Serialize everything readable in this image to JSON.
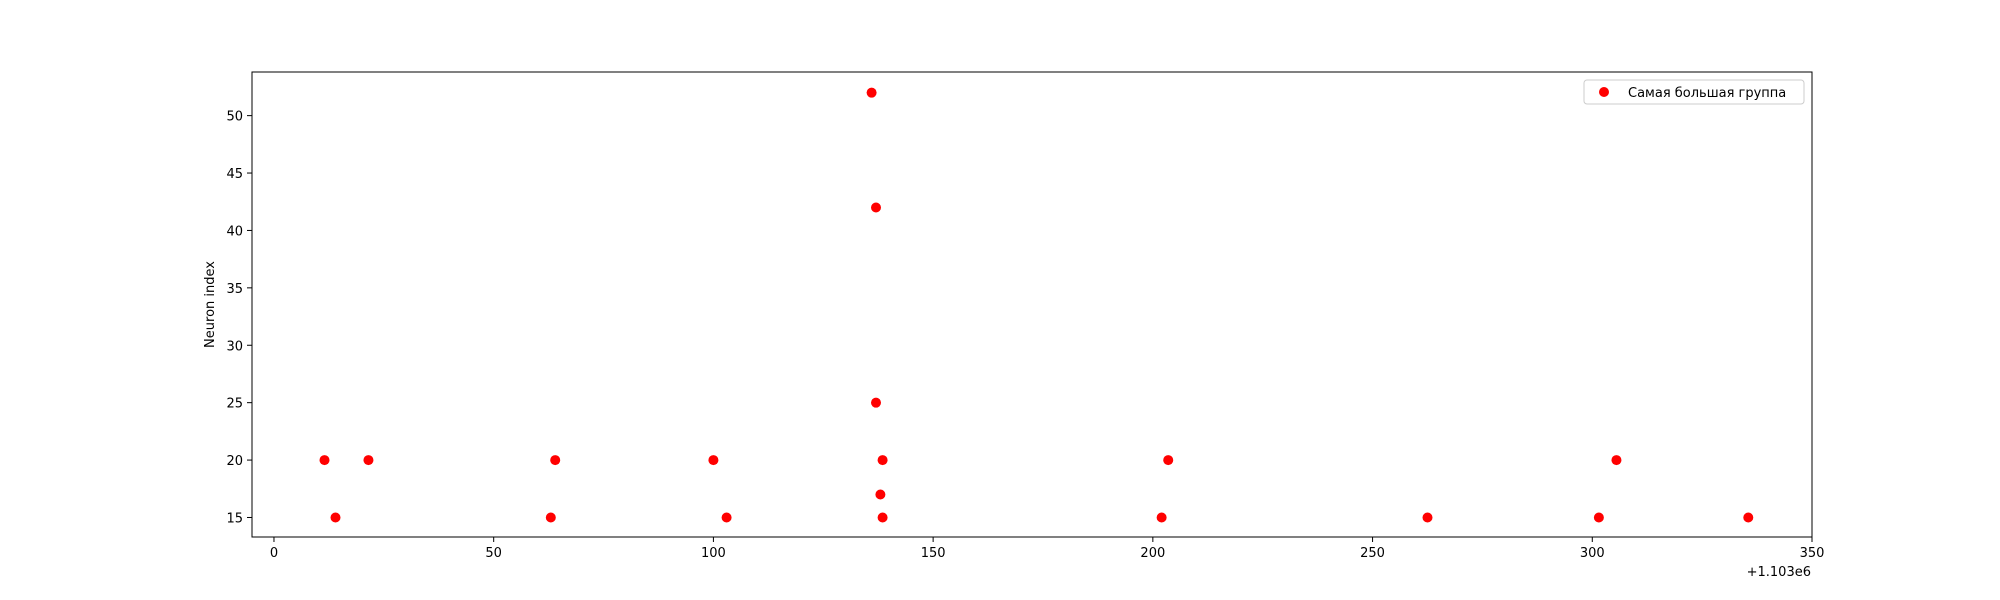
{
  "chart_data": {
    "type": "scatter",
    "title": "",
    "xlabel": "",
    "ylabel": "Neuron index",
    "x_offset_label": "+1.103e6",
    "xlim": [
      -5,
      350
    ],
    "ylim": [
      13.3,
      53.8
    ],
    "xticks": [
      0,
      50,
      100,
      150,
      200,
      250,
      300,
      350
    ],
    "yticks": [
      15,
      20,
      25,
      30,
      35,
      40,
      45,
      50
    ],
    "grid": false,
    "legend_position": "top-right",
    "series": [
      {
        "name": "Самая большая группа",
        "color": "#ff0000",
        "points": [
          {
            "x": 11.5,
            "y": 20
          },
          {
            "x": 14,
            "y": 15
          },
          {
            "x": 21.5,
            "y": 20
          },
          {
            "x": 63,
            "y": 15
          },
          {
            "x": 64,
            "y": 20
          },
          {
            "x": 100,
            "y": 20
          },
          {
            "x": 103,
            "y": 15
          },
          {
            "x": 136,
            "y": 52
          },
          {
            "x": 137,
            "y": 42
          },
          {
            "x": 137,
            "y": 25
          },
          {
            "x": 138,
            "y": 17
          },
          {
            "x": 138.5,
            "y": 20
          },
          {
            "x": 138.5,
            "y": 15
          },
          {
            "x": 202,
            "y": 15
          },
          {
            "x": 203.5,
            "y": 20
          },
          {
            "x": 262.5,
            "y": 15
          },
          {
            "x": 301.5,
            "y": 15
          },
          {
            "x": 305.5,
            "y": 20
          },
          {
            "x": 335.5,
            "y": 15
          }
        ]
      }
    ]
  }
}
